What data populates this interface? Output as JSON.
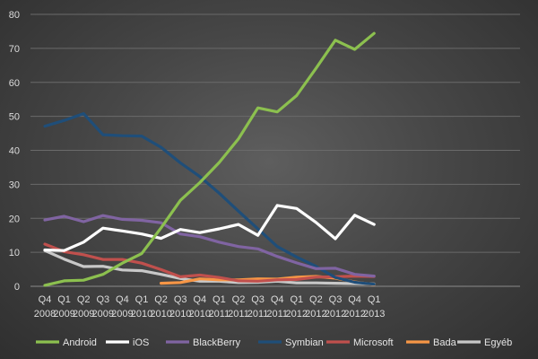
{
  "chart_data": {
    "type": "line",
    "title": "",
    "xlabel": "",
    "ylabel": "",
    "ylim": [
      0,
      80
    ],
    "yticks": [
      0,
      10,
      20,
      30,
      40,
      50,
      60,
      70,
      80
    ],
    "grid": true,
    "legend_position": "bottom",
    "categories": [
      [
        "Q4",
        "2008"
      ],
      [
        "Q1",
        "2009"
      ],
      [
        "Q2",
        "2009"
      ],
      [
        "Q3",
        "2009"
      ],
      [
        "Q4",
        "2009"
      ],
      [
        "Q1",
        "2010"
      ],
      [
        "Q2",
        "2010"
      ],
      [
        "Q3",
        "2010"
      ],
      [
        "Q4",
        "2010"
      ],
      [
        "Q1",
        "2011"
      ],
      [
        "Q2",
        "2011"
      ],
      [
        "Q3",
        "2011"
      ],
      [
        "Q4",
        "2011"
      ],
      [
        "Q1",
        "2012"
      ],
      [
        "Q2",
        "2012"
      ],
      [
        "Q3",
        "2012"
      ],
      [
        "Q4",
        "2012"
      ],
      [
        "Q1",
        "2013"
      ]
    ],
    "series": [
      {
        "name": "Android",
        "color": "#8cc04f",
        "values": [
          0.3,
          1.6,
          1.8,
          3.5,
          6.8,
          9.6,
          17.2,
          25.3,
          30.5,
          36.4,
          43.4,
          52.5,
          51.3,
          56.1,
          64.1,
          72.4,
          69.7,
          74.4
        ]
      },
      {
        "name": "iOS",
        "color": "#ffffff",
        "values": [
          10.7,
          10.5,
          13.0,
          17.1,
          16.3,
          15.4,
          14.1,
          16.7,
          15.8,
          16.9,
          18.2,
          15.0,
          23.8,
          22.9,
          18.8,
          14.0,
          20.9,
          18.2
        ]
      },
      {
        "name": "BlackBerry",
        "color": "#8064a2",
        "values": [
          19.5,
          20.6,
          19.0,
          20.8,
          19.7,
          19.4,
          18.7,
          15.4,
          14.6,
          13.0,
          11.7,
          11.0,
          8.8,
          6.9,
          5.2,
          5.3,
          3.5,
          3.0
        ]
      },
      {
        "name": "Symbian",
        "color": "#1f4e79",
        "values": [
          47.1,
          48.8,
          50.8,
          44.6,
          44.3,
          44.2,
          40.9,
          36.3,
          32.3,
          27.4,
          22.1,
          16.9,
          11.7,
          8.6,
          5.9,
          2.6,
          1.2,
          0.6
        ]
      },
      {
        "name": "Microsoft",
        "color": "#c0504d",
        "values": [
          12.4,
          10.2,
          9.3,
          7.9,
          7.9,
          6.8,
          4.9,
          2.8,
          3.3,
          2.6,
          1.6,
          1.5,
          1.9,
          2.0,
          2.7,
          2.8,
          3.0,
          2.9
        ]
      },
      {
        "name": "Bada",
        "color": "#f79646",
        "values": [
          null,
          null,
          null,
          null,
          null,
          null,
          0.9,
          1.1,
          2.2,
          1.9,
          1.9,
          2.2,
          2.1,
          2.7,
          2.9,
          2.4,
          1.3,
          0.5
        ]
      },
      {
        "name": "Egyéb",
        "color": "#c8c8c8",
        "values": [
          10.5,
          8.0,
          5.8,
          5.9,
          4.8,
          4.6,
          3.5,
          2.3,
          1.5,
          1.5,
          1.1,
          1.2,
          1.5,
          1.0,
          1.0,
          0.9,
          0.8,
          0.7
        ]
      }
    ]
  }
}
